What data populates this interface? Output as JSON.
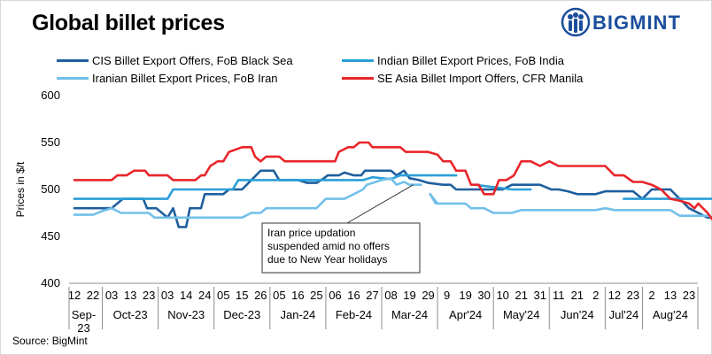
{
  "header": {
    "title": "Global billet prices",
    "brand": "BIGMINT"
  },
  "source": "Source: BigMint",
  "colors": {
    "cis": "#1f5f9e",
    "india": "#2a9fd8",
    "iran": "#72c0ea",
    "seasia": "#e8262b"
  },
  "chart_data": {
    "type": "line",
    "title": "Global billet prices",
    "ylabel": "Prices in $/t",
    "ylim": [
      400,
      600
    ],
    "yticks": [
      400,
      450,
      500,
      550,
      600
    ],
    "grid": false,
    "legend_position": "top",
    "x_day_ticks": [
      "12",
      "22",
      "03",
      "13",
      "23",
      "03",
      "14",
      "24",
      "05",
      "15",
      "26",
      "05",
      "16",
      "25",
      "06",
      "16",
      "27",
      "08",
      "19",
      "29",
      "9",
      "19",
      "30",
      "10",
      "21",
      "31",
      "11",
      "21",
      "2",
      "12",
      "23",
      "2",
      "13",
      "23"
    ],
    "x_month_labels": [
      "Sep-\n23",
      "Oct-23",
      "Nov-23",
      "Dec-23",
      "Jan-24",
      "Feb-24",
      "Mar-24",
      "Apr'24",
      "May'24",
      "Jun'24",
      "Jul'24",
      "Aug'24"
    ],
    "month_boundaries": [
      2,
      5,
      8,
      11,
      14,
      17,
      20,
      23,
      26,
      29,
      31
    ],
    "annotation": {
      "text": [
        "Iran price updation",
        "suspended amid no offers",
        "due to New Year holidays"
      ],
      "x": 18.2,
      "y": 505
    },
    "series": [
      {
        "name": "CIS Billet Export Offers, FoB Black Sea",
        "color_key": "cis",
        "points": [
          [
            0,
            480
          ],
          [
            2,
            480
          ],
          [
            2.3,
            485
          ],
          [
            2.6,
            490
          ],
          [
            3.7,
            490
          ],
          [
            3.9,
            480
          ],
          [
            4.4,
            480
          ],
          [
            5,
            470
          ],
          [
            5.3,
            480
          ],
          [
            5.6,
            460
          ],
          [
            6,
            460
          ],
          [
            6.2,
            480
          ],
          [
            6.8,
            480
          ],
          [
            7,
            495
          ],
          [
            8,
            495
          ],
          [
            8.3,
            500
          ],
          [
            9,
            500
          ],
          [
            9.5,
            510
          ],
          [
            10,
            520
          ],
          [
            10.7,
            520
          ],
          [
            11,
            510
          ],
          [
            12,
            510
          ],
          [
            12.5,
            507
          ],
          [
            13,
            507
          ],
          [
            13.4,
            512
          ],
          [
            13.6,
            515
          ],
          [
            14.2,
            515
          ],
          [
            14.5,
            518
          ],
          [
            15,
            515
          ],
          [
            15.4,
            515
          ],
          [
            15.6,
            520
          ],
          [
            17,
            520
          ],
          [
            17.3,
            515
          ],
          [
            17.7,
            520
          ],
          [
            18,
            512
          ],
          [
            18.5,
            510
          ],
          [
            19,
            507
          ],
          [
            19.8,
            505
          ],
          [
            20.2,
            505
          ],
          [
            20.5,
            500
          ],
          [
            21,
            500
          ],
          [
            22,
            500
          ],
          [
            23,
            500
          ],
          [
            23.5,
            505
          ],
          [
            25,
            505
          ],
          [
            25.6,
            500
          ],
          [
            26,
            500
          ],
          [
            26.5,
            498
          ],
          [
            27,
            495
          ],
          [
            28,
            495
          ],
          [
            28.5,
            498
          ],
          [
            30,
            498
          ],
          [
            30.5,
            490
          ],
          [
            31,
            500
          ],
          [
            31.5,
            500
          ],
          [
            32,
            500
          ],
          [
            32.5,
            490
          ],
          [
            33,
            480
          ],
          [
            33.5,
            475
          ],
          [
            34,
            470
          ],
          [
            34.6,
            470
          ]
        ]
      },
      {
        "name": "Indian Billet Export Prices, FoB India",
        "color_key": "india",
        "points": [
          [
            0,
            490
          ],
          [
            5,
            490
          ],
          [
            5.3,
            500
          ],
          [
            8.5,
            500
          ],
          [
            8.8,
            510
          ],
          [
            15.5,
            510
          ],
          [
            16,
            513
          ],
          [
            16.5,
            512
          ],
          [
            17,
            511
          ],
          [
            17.5,
            515
          ],
          [
            19,
            515
          ],
          [
            20.5,
            515
          ]
        ]
      },
      {
        "name": "Iranian Billet Export Prices, FoB Iran",
        "color_key": "iran",
        "points": [
          [
            0,
            473
          ],
          [
            1,
            473
          ],
          [
            1.5,
            477
          ],
          [
            2,
            480
          ],
          [
            2.5,
            475
          ],
          [
            4,
            475
          ],
          [
            4.3,
            470
          ],
          [
            9,
            470
          ],
          [
            9.5,
            475
          ],
          [
            10,
            475
          ],
          [
            10.3,
            480
          ],
          [
            13,
            480
          ],
          [
            13.5,
            490
          ],
          [
            14.5,
            490
          ],
          [
            15,
            495
          ],
          [
            15.5,
            500
          ],
          [
            15.7,
            505
          ],
          [
            16.5,
            510
          ],
          [
            17,
            512
          ],
          [
            17.3,
            505
          ],
          [
            17.7,
            508
          ],
          [
            18,
            505
          ],
          [
            18.6,
            505
          ]
        ]
      },
      {
        "name": "Iranian Billet Export Prices, FoB Iran (resumed)",
        "color_key": "iran",
        "points": [
          [
            19.1,
            495
          ],
          [
            19.5,
            485
          ],
          [
            21,
            485
          ],
          [
            21.3,
            480
          ],
          [
            22,
            480
          ],
          [
            22.5,
            475
          ],
          [
            23.5,
            475
          ],
          [
            24,
            478
          ],
          [
            28,
            478
          ],
          [
            28.5,
            480
          ],
          [
            29,
            478
          ],
          [
            32,
            478
          ],
          [
            32.5,
            472
          ],
          [
            34,
            472
          ],
          [
            34.5,
            468
          ],
          [
            34.8,
            465
          ]
        ]
      },
      {
        "name": "Iranian Billet Export Prices, FoB Iran (Apr)",
        "color_key": "iran",
        "points": [
          [
            19.1,
            495
          ],
          [
            19.4,
            485
          ]
        ]
      },
      {
        "name": "Indian Billet Export Prices, FoB India (Apr)",
        "color_key": "india",
        "points": [
          [
            21.5,
            505
          ],
          [
            23.5,
            500
          ],
          [
            24.5,
            500
          ]
        ]
      },
      {
        "name": "Indian Billet Export Prices, FoB India (Jul-Aug)",
        "color_key": "india",
        "points": [
          [
            29.5,
            490
          ],
          [
            34.8,
            490
          ]
        ]
      },
      {
        "name": "SE Asia Billet Import Offers, CFR Manila",
        "color_key": "seasia",
        "points": [
          [
            0,
            510
          ],
          [
            2,
            510
          ],
          [
            2.3,
            515
          ],
          [
            2.8,
            515
          ],
          [
            3.2,
            520
          ],
          [
            3.8,
            520
          ],
          [
            4,
            515
          ],
          [
            4.5,
            515
          ],
          [
            5,
            515
          ],
          [
            5.3,
            510
          ],
          [
            6.5,
            510
          ],
          [
            6.8,
            515
          ],
          [
            7,
            515
          ],
          [
            7.3,
            525
          ],
          [
            7.7,
            530
          ],
          [
            8,
            530
          ],
          [
            8.3,
            540
          ],
          [
            9,
            545
          ],
          [
            9.5,
            545
          ],
          [
            9.7,
            535
          ],
          [
            10,
            530
          ],
          [
            10.3,
            535
          ],
          [
            11,
            535
          ],
          [
            11.3,
            530
          ],
          [
            14,
            530
          ],
          [
            14.2,
            540
          ],
          [
            14.7,
            545
          ],
          [
            15,
            545
          ],
          [
            15.3,
            550
          ],
          [
            15.8,
            550
          ],
          [
            16,
            545
          ],
          [
            17.5,
            545
          ],
          [
            17.8,
            540
          ],
          [
            19,
            540
          ],
          [
            19.5,
            537
          ],
          [
            19.8,
            530
          ],
          [
            20.2,
            530
          ],
          [
            20.5,
            520
          ],
          [
            21,
            520
          ],
          [
            21.3,
            505
          ],
          [
            21.7,
            505
          ],
          [
            22,
            495
          ],
          [
            22.5,
            495
          ],
          [
            22.8,
            510
          ],
          [
            23.2,
            510
          ],
          [
            23.6,
            515
          ],
          [
            24,
            530
          ],
          [
            24.5,
            530
          ],
          [
            25,
            525
          ],
          [
            25.5,
            530
          ],
          [
            26,
            525
          ],
          [
            28.5,
            525
          ],
          [
            29,
            515
          ],
          [
            29.5,
            515
          ],
          [
            30,
            508
          ],
          [
            30.5,
            508
          ],
          [
            31,
            505
          ],
          [
            31.5,
            500
          ],
          [
            32,
            490
          ],
          [
            32.5,
            488
          ],
          [
            33,
            485
          ],
          [
            33.3,
            480
          ],
          [
            33.5,
            485
          ],
          [
            34,
            475
          ],
          [
            34.3,
            467
          ],
          [
            34.8,
            465
          ]
        ]
      }
    ]
  },
  "legend": [
    {
      "label": "CIS Billet Export Offers, FoB Black Sea",
      "color_key": "cis"
    },
    {
      "label": "Indian Billet Export Prices, FoB India",
      "color_key": "india"
    },
    {
      "label": "Iranian Billet Export Prices, FoB Iran",
      "color_key": "iran"
    },
    {
      "label": "SE Asia Billet Import Offers, CFR Manila",
      "color_key": "seasia"
    }
  ]
}
